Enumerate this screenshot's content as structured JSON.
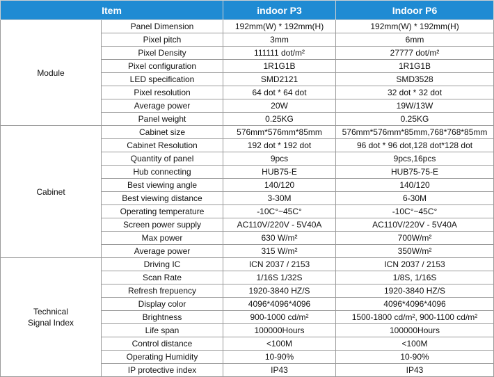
{
  "table": {
    "header": [
      "Item",
      "indoor P3",
      "Indoor P6"
    ],
    "groups": [
      {
        "label": "Module",
        "rows": [
          [
            "Panel Dimension",
            "192mm(W) * 192mm(H)",
            "192mm(W) * 192mm(H)"
          ],
          [
            "Pixel pitch",
            "3mm",
            "6mm"
          ],
          [
            "Pixel Density",
            "111111  dot/m²",
            "27777 dot/m²"
          ],
          [
            "Pixel configuration",
            "1R1G1B",
            "1R1G1B"
          ],
          [
            "LED specification",
            "SMD2121",
            "SMD3528"
          ],
          [
            "Pixel resolution",
            "64 dot * 64 dot",
            "32 dot * 32 dot"
          ],
          [
            "Average power",
            "20W",
            "19W/13W"
          ],
          [
            "Panel weight",
            "0.25KG",
            "0.25KG"
          ]
        ]
      },
      {
        "label": "Cabinet",
        "rows": [
          [
            "Cabinet size",
            "576mm*576mm*85mm",
            "576mm*576mm*85mm,768*768*85mm"
          ],
          [
            "Cabinet Resolution",
            "192 dot * 192 dot",
            "96 dot * 96 dot,128 dot*128 dot"
          ],
          [
            "Quantity of panel",
            "9pcs",
            "9pcs,16pcs"
          ],
          [
            "Hub connecting",
            "HUB75-E",
            "HUB75-75-E"
          ],
          [
            "Best viewing angle",
            "140/120",
            "140/120"
          ],
          [
            "Best viewing distance",
            "3-30M",
            "6-30M"
          ],
          [
            "Operating temperature",
            "-10C°~45C°",
            "-10C°~45C°"
          ],
          [
            "Screen power supply",
            "AC110V/220V - 5V40A",
            "AC110V/220V - 5V40A"
          ],
          [
            "Max power",
            "630 W/m²",
            "700W/m²"
          ],
          [
            "Average power",
            "315 W/m²",
            "350W/m²"
          ]
        ]
      },
      {
        "label": "Technical Signal Index",
        "rows": [
          [
            "Driving IC",
            "ICN 2037 / 2153",
            "ICN 2037 / 2153"
          ],
          [
            "Scan Rate",
            "1/16S  1/32S",
            "1/8S, 1/16S"
          ],
          [
            "Refresh frepuency",
            "1920-3840 HZ/S",
            "1920-3840 HZ/S"
          ],
          [
            "Display color",
            "4096*4096*4096",
            "4096*4096*4096"
          ],
          [
            "Brightness",
            "900-1000 cd/m²",
            "1500-1800 cd/m², 900-1100 cd/m²"
          ],
          [
            "Life span",
            "100000Hours",
            "100000Hours"
          ],
          [
            "Control distance",
            "<100M",
            "<100M"
          ],
          [
            "Operating Humidity",
            "10-90%",
            "10-90%"
          ],
          [
            "IP protective index",
            "IP43",
            "IP43"
          ]
        ]
      }
    ]
  }
}
